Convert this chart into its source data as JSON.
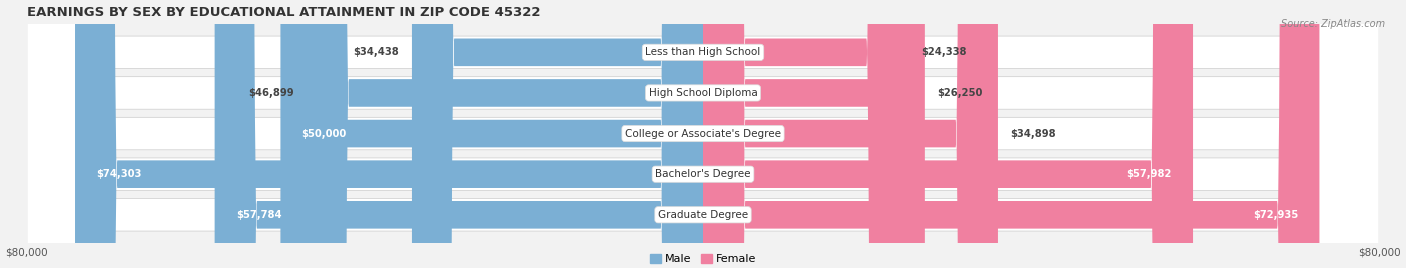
{
  "title": "EARNINGS BY SEX BY EDUCATIONAL ATTAINMENT IN ZIP CODE 45322",
  "source": "Source: ZipAtlas.com",
  "categories": [
    "Less than High School",
    "High School Diploma",
    "College or Associate's Degree",
    "Bachelor's Degree",
    "Graduate Degree"
  ],
  "male_values": [
    34438,
    46899,
    50000,
    74303,
    57784
  ],
  "female_values": [
    24338,
    26250,
    34898,
    57982,
    72935
  ],
  "male_color": "#7bafd4",
  "female_color": "#f080a0",
  "male_label": "Male",
  "female_label": "Female",
  "axis_max": 80000,
  "background_color": "#f2f2f2",
  "bar_bg_color": "#e8e8e8",
  "row_bg_color": "#ffffff",
  "title_fontsize": 9.5,
  "label_fontsize": 7.5,
  "value_fontsize": 7.2,
  "axis_label": "$80,000"
}
